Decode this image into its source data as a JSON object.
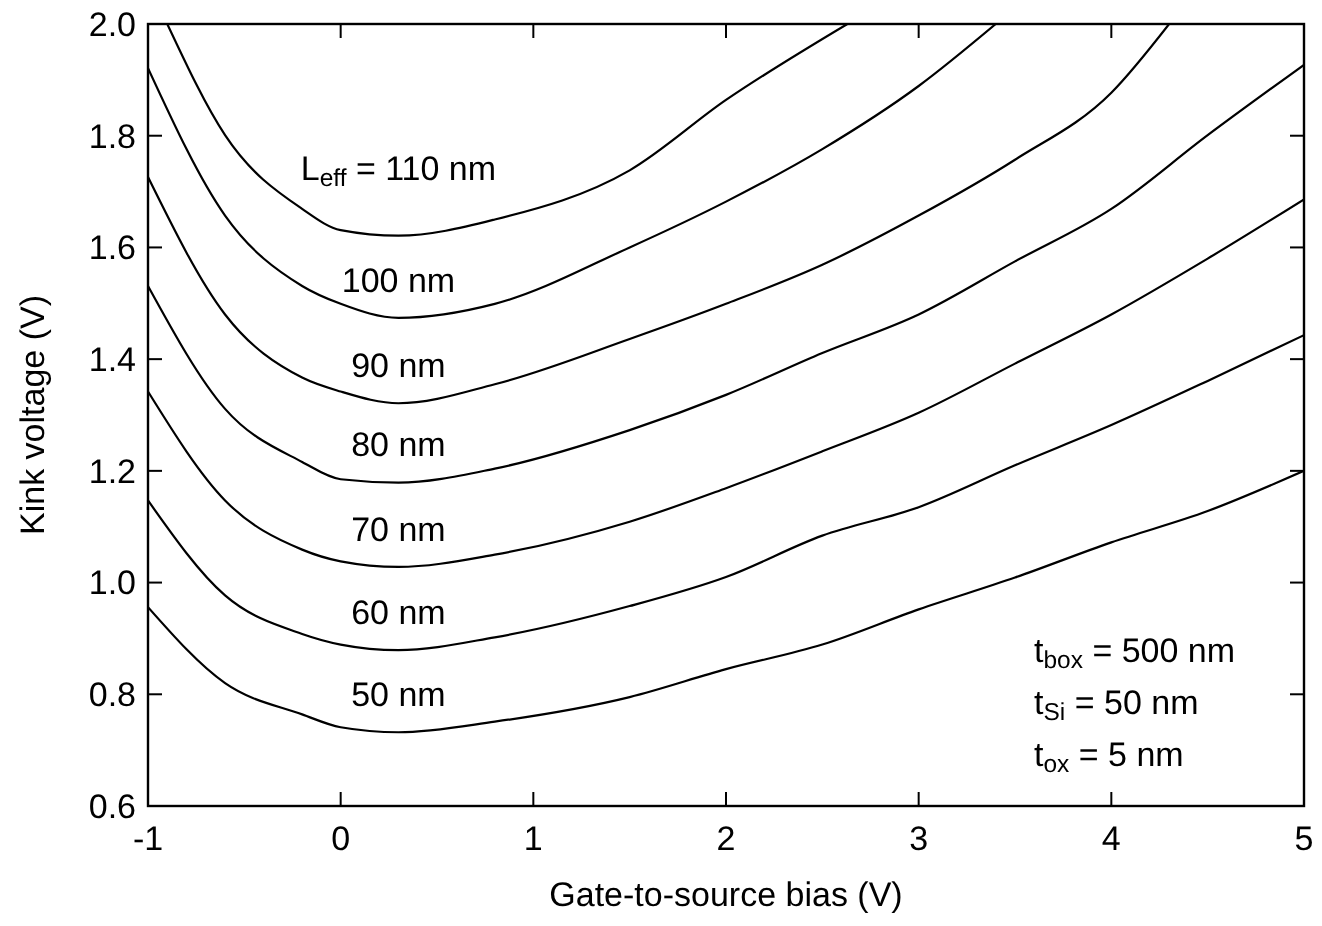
{
  "chart_data": {
    "type": "line",
    "xlabel": "Gate-to-source bias (V)",
    "ylabel": "Kink voltage (V)",
    "xlim": [
      -1,
      5
    ],
    "ylim": [
      0.6,
      2.0
    ],
    "xticks": [
      -1,
      0,
      1,
      2,
      3,
      4,
      5
    ],
    "yticks": [
      {
        "value": 0.6,
        "label": "0.6"
      },
      {
        "value": 0.8,
        "label": "0.8"
      },
      {
        "value": 1.0,
        "label": "1.0"
      },
      {
        "value": 1.2,
        "label": "1.2"
      },
      {
        "value": 1.4,
        "label": "1.4"
      },
      {
        "value": 1.6,
        "label": "1.6"
      },
      {
        "value": 1.8,
        "label": "1.8"
      },
      {
        "value": 2.0,
        "label": "2.0"
      }
    ],
    "grid": false,
    "marker": "none",
    "line_style": "solid",
    "series": [
      {
        "color": "#000000",
        "x": [
          -1,
          -0.6,
          -0.2,
          0,
          0.3,
          0.8,
          1.5,
          2,
          2.5,
          3,
          3.5,
          4,
          4.5,
          5
        ],
        "values": [
          0.956,
          0.82,
          0.764,
          0.741,
          0.732,
          0.751,
          0.795,
          0.845,
          0.889,
          0.952,
          1.009,
          1.072,
          1.128,
          1.2
        ]
      },
      {
        "color": "#000000",
        "x": [
          -1,
          -0.6,
          -0.2,
          0,
          0.3,
          0.8,
          1.5,
          2,
          2.5,
          3,
          3.5,
          4,
          4.5,
          5
        ],
        "values": [
          1.147,
          0.977,
          0.908,
          0.889,
          0.879,
          0.902,
          0.958,
          1.01,
          1.084,
          1.135,
          1.21,
          1.282,
          1.361,
          1.443
        ]
      },
      {
        "color": "#000000",
        "x": [
          -1,
          -0.6,
          -0.2,
          0,
          0.3,
          0.8,
          1.5,
          2,
          2.5,
          3,
          3.5,
          4,
          4.5,
          5
        ],
        "values": [
          1.342,
          1.147,
          1.059,
          1.038,
          1.028,
          1.05,
          1.109,
          1.169,
          1.235,
          1.304,
          1.392,
          1.48,
          1.58,
          1.686
        ]
      },
      {
        "color": "#000000",
        "x": [
          -1,
          -0.6,
          -0.2,
          0,
          0.3,
          0.8,
          1.5,
          2,
          2.5,
          3,
          3.5,
          4,
          4.5,
          5
        ],
        "values": [
          1.531,
          1.311,
          1.216,
          1.185,
          1.179,
          1.204,
          1.273,
          1.336,
          1.411,
          1.48,
          1.575,
          1.669,
          1.801,
          1.927
        ]
      },
      {
        "color": "#000000",
        "x": [
          -1,
          -0.6,
          -0.2,
          0,
          0.3,
          0.8,
          1.5,
          2,
          2.5,
          3,
          3.5,
          4,
          4.3
        ],
        "values": [
          1.726,
          1.48,
          1.367,
          1.342,
          1.321,
          1.355,
          1.436,
          1.499,
          1.569,
          1.657,
          1.757,
          1.877,
          2.0
        ]
      },
      {
        "color": "#000000",
        "x": [
          -1,
          -0.6,
          -0.2,
          0,
          0.3,
          0.8,
          1.5,
          2,
          2.5,
          3,
          3.4
        ],
        "values": [
          1.921,
          1.657,
          1.531,
          1.499,
          1.474,
          1.499,
          1.6,
          1.682,
          1.776,
          1.889,
          2.0
        ]
      },
      {
        "color": "#000000",
        "x": [
          -0.9,
          -0.6,
          -0.2,
          0,
          0.3,
          0.8,
          1.5,
          2,
          2.63
        ],
        "values": [
          2.0,
          1.801,
          1.669,
          1.631,
          1.621,
          1.65,
          1.738,
          1.864,
          2.0
        ]
      }
    ],
    "annotations": [
      "L$_{eff}$ = 110 nm",
      "100 nm",
      "90 nm",
      "80 nm",
      "70 nm",
      "60 nm",
      "50 nm",
      "t$_{box}$ = 500 nm",
      "t$_{Si}$ = 50 nm",
      "t$_{ox}$ = 5 nm"
    ]
  }
}
